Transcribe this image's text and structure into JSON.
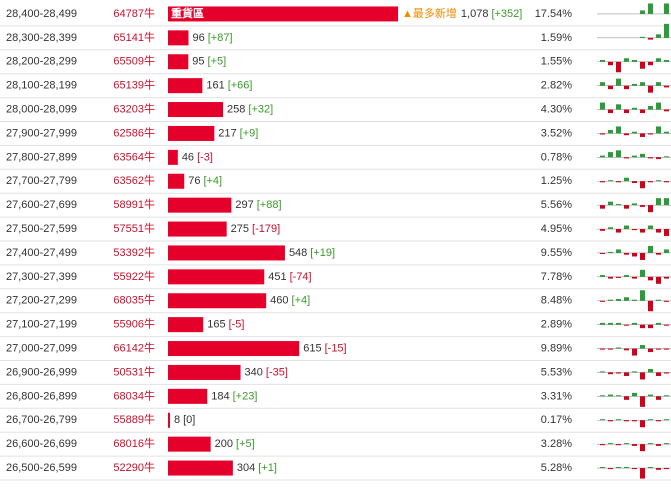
{
  "rows": [
    {
      "range": "28,400-28,499",
      "lots": "64787牛",
      "count": 1078,
      "count_label": "1,078",
      "change": "[+352]",
      "percent": "17.54%",
      "tag": "重貨區",
      "note": "▲最多新增",
      "spark": [
        0,
        0,
        0,
        0,
        0,
        1,
        3,
        0,
        3
      ]
    },
    {
      "range": "28,300-28,399",
      "lots": "65141牛",
      "count": 96,
      "change": "[+87]",
      "percent": "1.59%",
      "spark": [
        0,
        0,
        0,
        0,
        0,
        0.3,
        -0.5,
        1,
        4
      ]
    },
    {
      "range": "28,200-28,299",
      "lots": "65509牛",
      "count": 95,
      "change": "[+5]",
      "percent": "1.55%",
      "spark": [
        0.5,
        -1,
        -3,
        1,
        0.5,
        -2,
        -1,
        1,
        0.5
      ]
    },
    {
      "range": "28,100-28,199",
      "lots": "65139牛",
      "count": 161,
      "change": "[+66]",
      "percent": "2.82%",
      "spark": [
        1,
        -1,
        2,
        -1,
        0.5,
        1,
        -2,
        1,
        -0.5
      ]
    },
    {
      "range": "28,000-28,099",
      "lots": "63203牛",
      "count": 258,
      "change": "[+32]",
      "percent": "4.30%",
      "spark": [
        2,
        -1,
        1.5,
        -1,
        0.5,
        -1,
        1,
        2,
        -0.5
      ]
    },
    {
      "range": "27,900-27,999",
      "lots": "62586牛",
      "count": 217,
      "change": "[+9]",
      "percent": "3.52%",
      "spark": [
        -0.3,
        1,
        2,
        -0.5,
        0.5,
        -1,
        -0.3,
        2,
        0.5
      ]
    },
    {
      "range": "27,800-27,899",
      "lots": "63564牛",
      "count": 46,
      "change": "[-3]",
      "percent": "0.78%",
      "spark": [
        0.5,
        1.5,
        2,
        -0.3,
        0.5,
        1,
        -0.3,
        -0.5,
        0.3
      ]
    },
    {
      "range": "27,700-27,799",
      "lots": "63562牛",
      "count": 76,
      "change": "[+4]",
      "percent": "1.25%",
      "spark": [
        -0.3,
        0.3,
        -0.3,
        1,
        -0.5,
        -2,
        -0.3,
        0.3,
        -0.3
      ]
    },
    {
      "range": "27,600-27,699",
      "lots": "58991牛",
      "count": 297,
      "change": "[+88]",
      "percent": "5.56%",
      "spark": [
        -1,
        1,
        0.3,
        -1,
        0.5,
        -0.5,
        -2,
        2,
        2
      ]
    },
    {
      "range": "27,500-27,599",
      "lots": "57551牛",
      "count": 275,
      "change": "[-179]",
      "percent": "4.95%",
      "spark": [
        -0.5,
        0.5,
        -1,
        1,
        -0.3,
        -1,
        1,
        -1,
        -2
      ]
    },
    {
      "range": "27,400-27,499",
      "lots": "53392牛",
      "count": 548,
      "change": "[+19]",
      "percent": "9.55%",
      "spark": [
        -0.3,
        0.3,
        1,
        -0.5,
        -1,
        -2,
        2,
        -0.5,
        1
      ]
    },
    {
      "range": "27,300-27,399",
      "lots": "55922牛",
      "count": 451,
      "change": "[-74]",
      "percent": "7.78%",
      "spark": [
        0.5,
        -0.5,
        -0.3,
        0.5,
        -0.5,
        2,
        -1,
        -2,
        -0.5
      ]
    },
    {
      "range": "27,200-27,299",
      "lots": "68035牛",
      "count": 460,
      "change": "[+4]",
      "percent": "8.48%",
      "spark": [
        -0.3,
        0.3,
        0.5,
        1,
        0.3,
        3,
        -3,
        0.3,
        -0.3
      ]
    },
    {
      "range": "27,100-27,199",
      "lots": "55906牛",
      "count": 165,
      "change": "[-5]",
      "percent": "2.89%",
      "spark": [
        0.5,
        0.5,
        0.5,
        -0.3,
        0.5,
        -1,
        -1,
        0.5,
        -0.3
      ]
    },
    {
      "range": "27,000-27,099",
      "lots": "66142牛",
      "count": 615,
      "change": "[-15]",
      "percent": "9.89%",
      "spark": [
        -0.3,
        -0.3,
        0.3,
        -0.5,
        -2,
        1,
        -1,
        -0.3,
        -0.3
      ]
    },
    {
      "range": "26,900-26,999",
      "lots": "50531牛",
      "count": 340,
      "change": "[-35]",
      "percent": "5.53%",
      "spark": [
        0.3,
        -0.5,
        -0.3,
        -1,
        0.3,
        -2,
        1,
        -1,
        -0.3
      ]
    },
    {
      "range": "26,800-26,899",
      "lots": "68034牛",
      "count": 184,
      "change": "[+23]",
      "percent": "3.31%",
      "spark": [
        0.3,
        0.5,
        0.3,
        -1,
        1,
        -3,
        0.5,
        -1,
        0.3
      ]
    },
    {
      "range": "26,700-26,799",
      "lots": "55889牛",
      "count": 8,
      "change": "[0]",
      "percent": "0.17%",
      "spark": [
        0.3,
        -0.3,
        0.3,
        -0.3,
        -0.3,
        -2,
        0.3,
        -0.3,
        0.3
      ]
    },
    {
      "range": "26,600-26,699",
      "lots": "68016牛",
      "count": 200,
      "change": "[+5]",
      "percent": "3.28%",
      "spark": [
        -0.3,
        0.3,
        -0.3,
        0.3,
        -0.5,
        -2,
        0.3,
        -0.5,
        0.3
      ]
    },
    {
      "range": "26,500-26,599",
      "lots": "52290牛",
      "count": 304,
      "change": "[+1]",
      "percent": "5.28%",
      "spark": [
        0.3,
        -0.3,
        0.3,
        0.3,
        -0.3,
        -3,
        0.3,
        -0.5,
        -0.3
      ]
    }
  ]
}
